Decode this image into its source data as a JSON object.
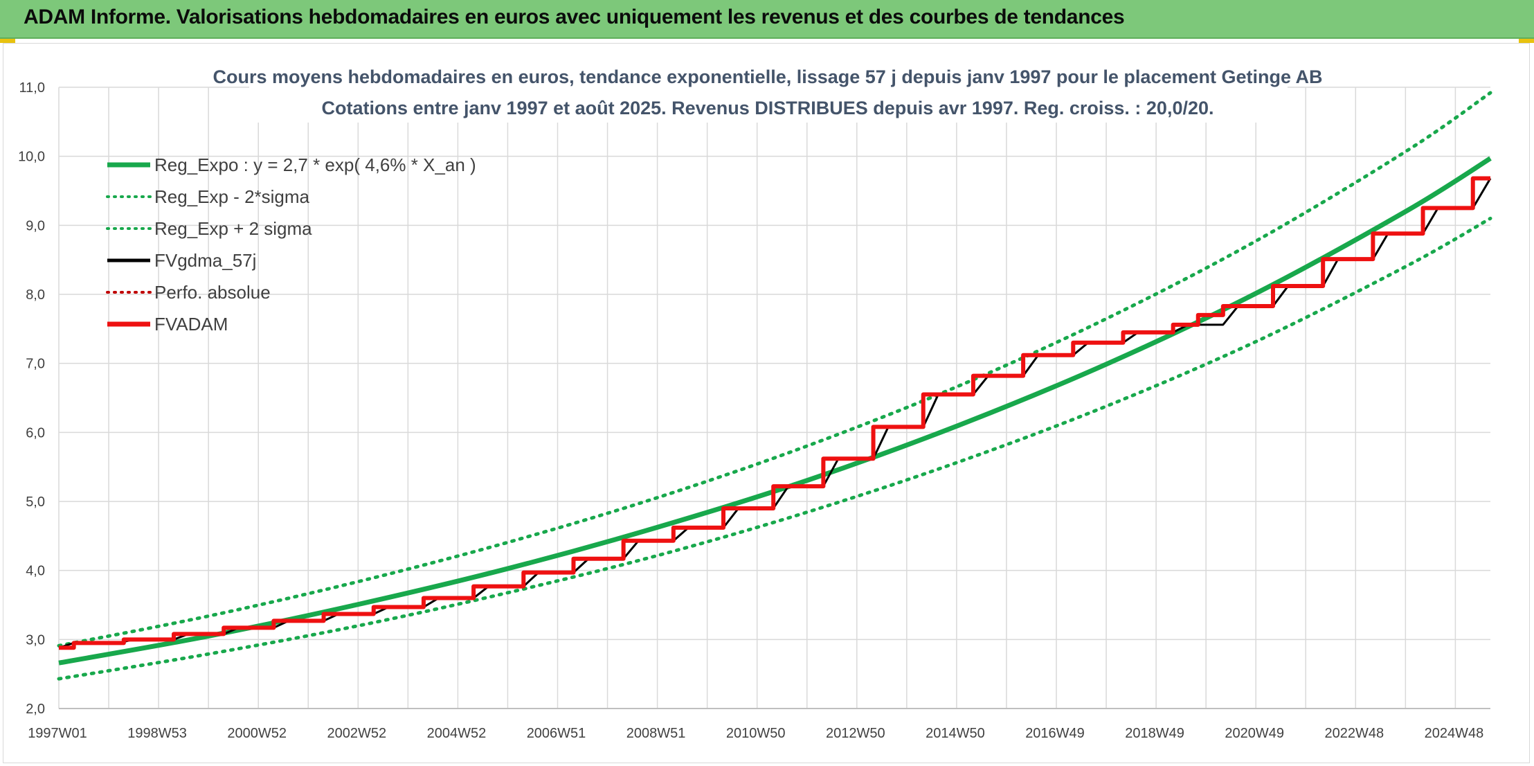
{
  "header": {
    "title": "ADAM Informe. Valorisations hebdomadaires en euros avec uniquement les revenus et des courbes de tendances"
  },
  "colors": {
    "header_bg": "#7dc87a",
    "trend": "#18a84c",
    "fv57": "#000000",
    "fvadam": "#ee1111",
    "perfo": "#c00000",
    "grid": "#d9d9d9"
  },
  "chart_data": {
    "type": "line",
    "title": "Cours moyens hebdomadaires en euros, tendance exponentielle, lissage 57 j depuis janv 1997 pour le placement Getinge AB",
    "subtitle": "Cotations entre janv 1997 et août 2025. Revenus DISTRIBUES depuis avr 1997. Reg. croiss. : 20,0/20.",
    "xlabel": "",
    "ylabel": "",
    "ylim": [
      2.0,
      11.0
    ],
    "y_ticks": [
      "2,0",
      "3,0",
      "4,0",
      "5,0",
      "6,0",
      "7,0",
      "8,0",
      "9,0",
      "10,0",
      "11,0"
    ],
    "x_range": [
      1997.0,
      2025.65
    ],
    "x_tick_labels": [
      "1997W01",
      "1998W53",
      "2000W52",
      "2002W52",
      "2004W52",
      "2006W51",
      "2008W51",
      "2010W50",
      "2012W50",
      "2014W50",
      "2016W49",
      "2018W49",
      "2020W49",
      "2022W48",
      "2024W48"
    ],
    "grid": true,
    "legend_position": "top-left",
    "series": [
      {
        "name": "Reg_Expo : y = 2,7 * exp( 4,6% *  X_an )",
        "style": "solid-thick",
        "color": "#18a84c",
        "x": [
          1997.0,
          2000.0,
          2003.0,
          2006.0,
          2009.0,
          2012.0,
          2015.0,
          2018.0,
          2021.0,
          2024.0,
          2025.65
        ],
        "values": [
          2.66,
          3.05,
          3.51,
          4.03,
          4.63,
          5.31,
          6.1,
          7.0,
          8.03,
          9.22,
          9.97
        ]
      },
      {
        "name": "Reg_Exp - 2*sigma",
        "style": "dotted",
        "color": "#18a84c",
        "x": [
          1997.0,
          2000.0,
          2003.0,
          2006.0,
          2009.0,
          2012.0,
          2015.0,
          2018.0,
          2021.0,
          2024.0,
          2025.65
        ],
        "values": [
          2.43,
          2.79,
          3.2,
          3.68,
          4.22,
          4.85,
          5.57,
          6.39,
          7.33,
          8.42,
          9.1
        ]
      },
      {
        "name": "Reg_Exp + 2 sigma",
        "style": "dotted",
        "color": "#18a84c",
        "x": [
          1997.0,
          2000.0,
          2003.0,
          2006.0,
          2009.0,
          2012.0,
          2015.0,
          2018.0,
          2021.0,
          2024.0,
          2025.65
        ],
        "values": [
          2.91,
          3.34,
          3.84,
          4.41,
          5.06,
          5.81,
          6.67,
          7.66,
          8.79,
          10.09,
          10.92
        ]
      },
      {
        "name": "FVgdma_57j",
        "style": "solid",
        "color": "#000000",
        "x": [
          1997.0,
          1997.3,
          1998.2,
          1998.5,
          1999.3,
          1999.6,
          2000.3,
          2000.6,
          2001.3,
          2001.6,
          2002.3,
          2002.6,
          2003.3,
          2003.6,
          2004.3,
          2004.6,
          2005.3,
          2005.6,
          2006.3,
          2006.6,
          2007.3,
          2007.6,
          2008.3,
          2008.6,
          2009.3,
          2009.6,
          2010.3,
          2010.6,
          2011.3,
          2011.6,
          2012.3,
          2012.6,
          2013.3,
          2013.6,
          2014.3,
          2014.6,
          2015.3,
          2015.6,
          2016.3,
          2016.6,
          2017.3,
          2017.6,
          2018.3,
          2018.6,
          2019.3,
          2019.6,
          2020.3,
          2020.6,
          2021.3,
          2021.6,
          2022.3,
          2022.6,
          2023.3,
          2023.6,
          2024.3,
          2024.6,
          2025.3,
          2025.65
        ],
        "values": [
          2.88,
          2.95,
          2.95,
          3.0,
          3.0,
          3.08,
          3.08,
          3.17,
          3.17,
          3.27,
          3.27,
          3.37,
          3.37,
          3.47,
          3.47,
          3.6,
          3.6,
          3.77,
          3.77,
          3.97,
          3.97,
          4.17,
          4.17,
          4.43,
          4.43,
          4.62,
          4.62,
          4.9,
          4.9,
          5.22,
          5.22,
          5.62,
          5.62,
          6.08,
          6.08,
          6.55,
          6.55,
          6.82,
          6.82,
          7.12,
          7.12,
          7.3,
          7.3,
          7.45,
          7.45,
          7.56,
          7.56,
          7.83,
          7.83,
          8.12,
          8.12,
          8.51,
          8.51,
          8.88,
          8.88,
          9.25,
          9.25,
          9.68
        ]
      },
      {
        "name": "Perfo. absolue",
        "style": "dotted",
        "color": "#c00000",
        "x": [],
        "values": []
      },
      {
        "name": "FVADAM",
        "style": "step-thick",
        "color": "#ee1111",
        "x": [
          1997.0,
          1997.3,
          1998.3,
          1999.3,
          2000.3,
          2001.3,
          2002.3,
          2003.3,
          2004.3,
          2005.3,
          2006.3,
          2007.3,
          2008.3,
          2009.3,
          2010.3,
          2011.3,
          2012.3,
          2013.3,
          2014.3,
          2015.3,
          2016.3,
          2017.3,
          2018.3,
          2019.3,
          2019.8,
          2020.3,
          2021.3,
          2022.3,
          2023.3,
          2024.3,
          2025.3,
          2025.65
        ],
        "values": [
          2.88,
          2.95,
          3.0,
          3.08,
          3.17,
          3.27,
          3.37,
          3.47,
          3.6,
          3.77,
          3.97,
          4.17,
          4.43,
          4.62,
          4.9,
          5.22,
          5.62,
          6.08,
          6.55,
          6.82,
          7.12,
          7.3,
          7.45,
          7.56,
          7.7,
          7.83,
          8.12,
          8.51,
          8.88,
          9.25,
          9.68,
          9.68
        ]
      }
    ]
  }
}
